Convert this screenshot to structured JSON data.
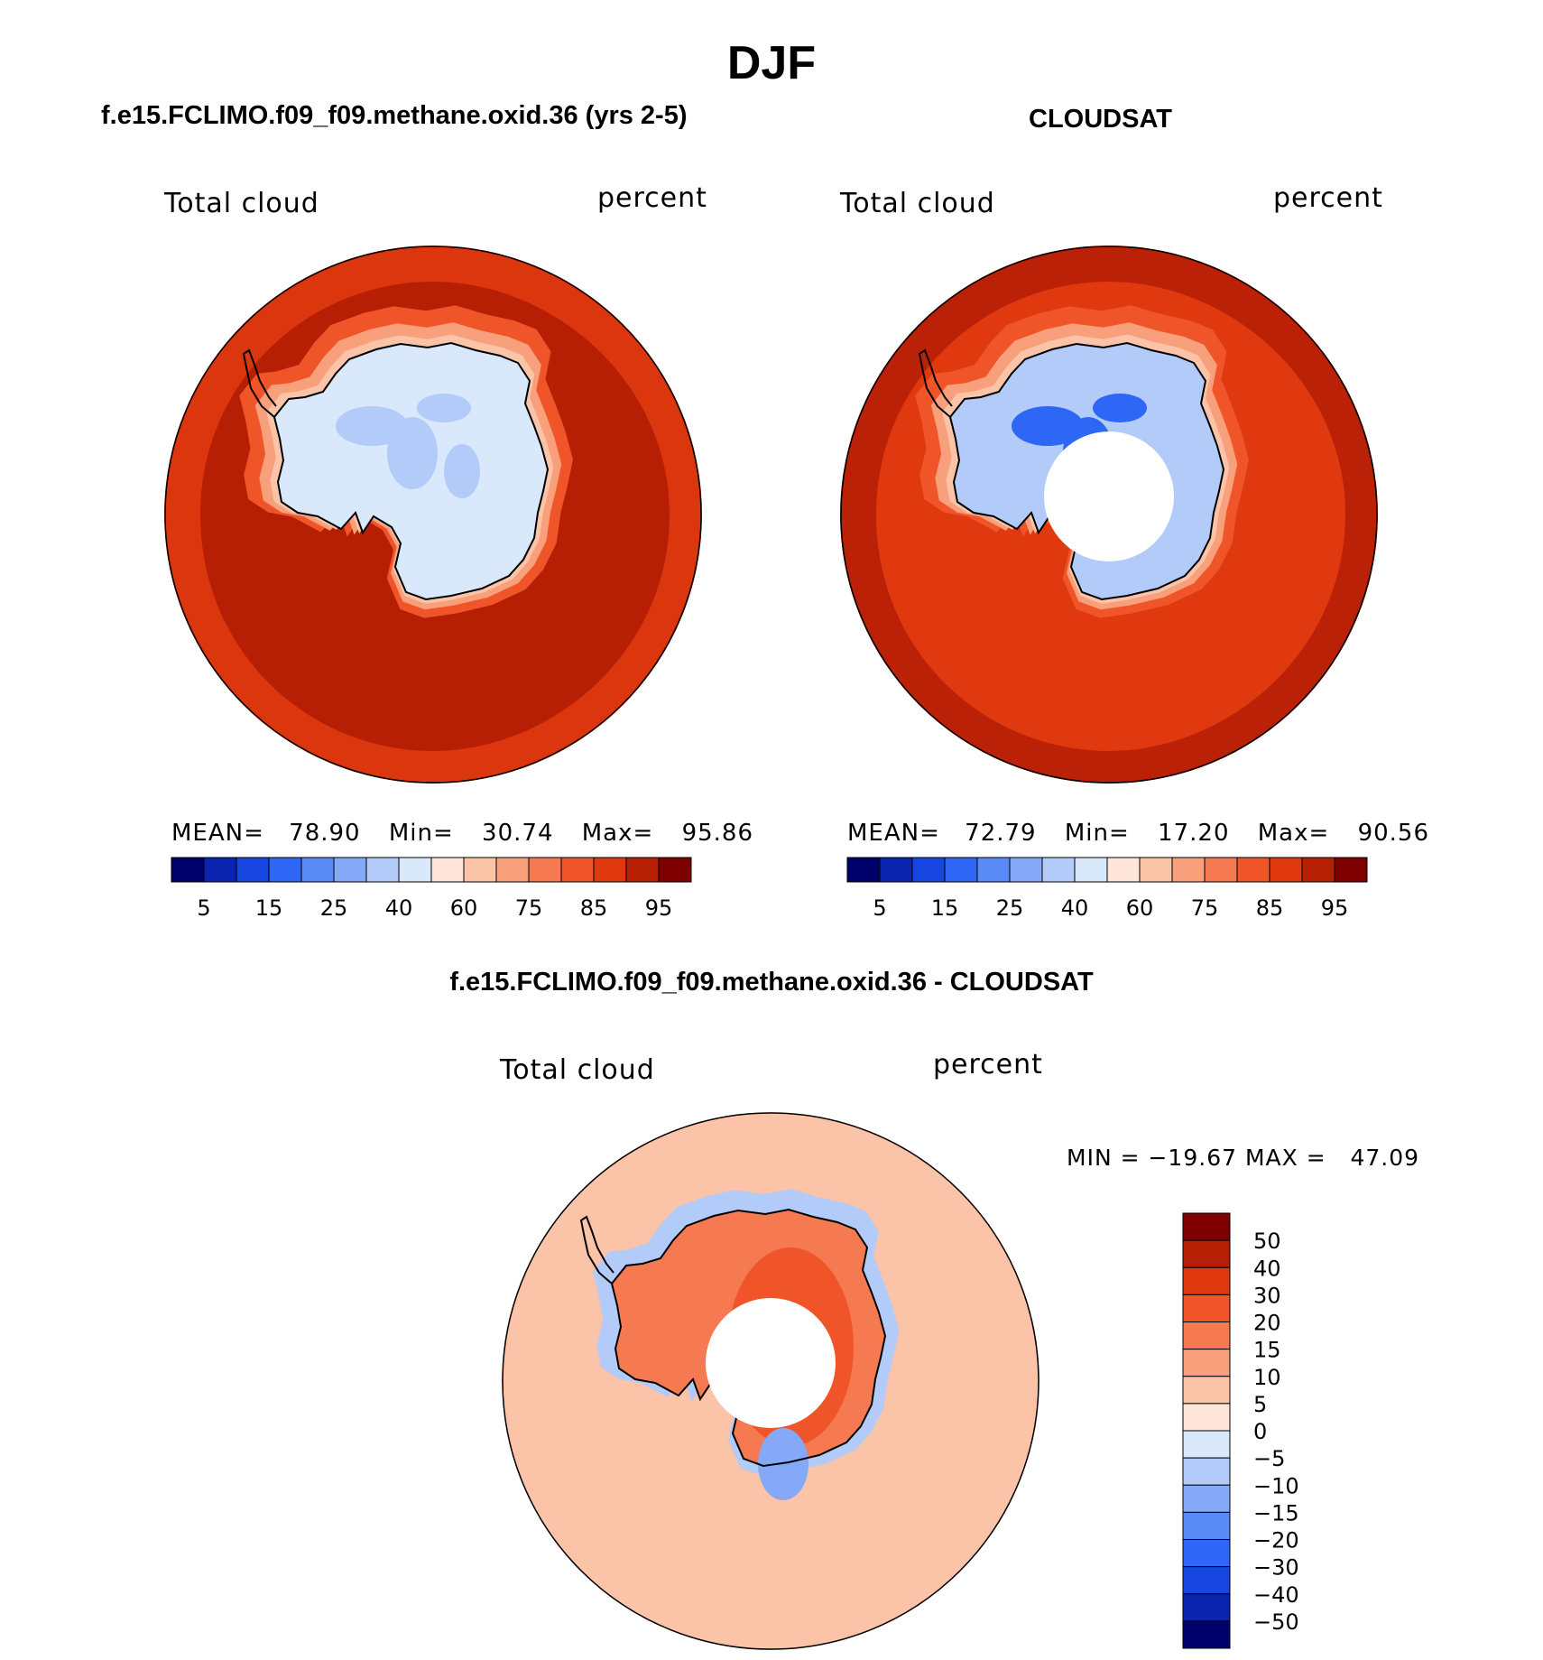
{
  "page": {
    "title": "DJF"
  },
  "panels": {
    "model": {
      "title": "f.e15.FCLIMO.f09_f09.methane.oxid.36 (yrs 2-5)",
      "left_label": "Total cloud",
      "right_label": "percent",
      "stats": {
        "mean_label": "MEAN=",
        "mean": "78.90",
        "min_label": "Min=",
        "min": "30.74",
        "max_label": "Max=",
        "max": "95.86"
      }
    },
    "obs": {
      "title": "CLOUDSAT",
      "left_label": "Total cloud",
      "right_label": "percent",
      "stats": {
        "mean_label": "MEAN=",
        "mean": "72.79",
        "min_label": "Min=",
        "min": "17.20",
        "max_label": "Max=",
        "max": "90.56"
      }
    },
    "diff": {
      "title": "f.e15.FCLIMO.f09_f09.methane.oxid.36 - CLOUDSAT",
      "left_label": "Total cloud",
      "right_label": "percent",
      "minmax": "MIN = −19.67 MAX =   47.09"
    }
  },
  "colors": {
    "seq16": [
      "#00006b",
      "#0a24b0",
      "#1645e0",
      "#2e66f5",
      "#5a8af5",
      "#86a9f7",
      "#b3cbf9",
      "#d9e8fb",
      "#fde6d9",
      "#fbc4a8",
      "#f8a07c",
      "#f57a52",
      "#f0552a",
      "#e0380f",
      "#b71f05",
      "#7f0000"
    ],
    "diff16": [
      "#00006b",
      "#0a24b0",
      "#1645e0",
      "#2e66f5",
      "#5a8af5",
      "#86a9f7",
      "#b3cbf9",
      "#d9e8fb",
      "#fde6d9",
      "#fbc4a8",
      "#f8a07c",
      "#f57a52",
      "#f0552a",
      "#e0380f",
      "#b71f05",
      "#7f0000"
    ],
    "coast": "#000000"
  },
  "chart_data": [
    {
      "type": "heatmap",
      "projection": "south-polar-stereographic",
      "title": "f.e15.FCLIMO.f09_f09.methane.oxid.36 (yrs 2-5)",
      "variable": "Total cloud",
      "units": "percent",
      "mean": 78.9,
      "min": 30.74,
      "max": 95.86,
      "colorbar_ticks": [
        "5",
        "15",
        "25",
        "40",
        "60",
        "75",
        "85",
        "95"
      ],
      "levels": [
        5,
        10,
        15,
        20,
        25,
        30,
        40,
        50,
        60,
        70,
        75,
        80,
        85,
        90,
        95
      ],
      "field": {
        "ocean": 93,
        "ocean_band": 88,
        "coast_ring": [
          80,
          72,
          65
        ],
        "interior": 45,
        "low_patches": 35,
        "pole_hole": false
      }
    },
    {
      "type": "heatmap",
      "projection": "south-polar-stereographic",
      "title": "CLOUDSAT",
      "variable": "Total cloud",
      "units": "percent",
      "mean": 72.79,
      "min": 17.2,
      "max": 90.56,
      "colorbar_ticks": [
        "5",
        "15",
        "25",
        "40",
        "60",
        "75",
        "85",
        "95"
      ],
      "levels": [
        5,
        10,
        15,
        20,
        25,
        30,
        40,
        50,
        60,
        70,
        75,
        80,
        85,
        90,
        95
      ],
      "field": {
        "ocean": 87,
        "ocean_band": 91,
        "coast_ring": [
          80,
          72,
          65
        ],
        "interior": 38,
        "low_patches": 18,
        "pole_hole": true
      }
    },
    {
      "type": "heatmap",
      "projection": "south-polar-stereographic",
      "title": "f.e15.FCLIMO.f09_f09.methane.oxid.36 - CLOUDSAT",
      "variable": "Total cloud",
      "units": "percent",
      "min": -19.67,
      "max": 47.09,
      "colorbar_ticks": [
        "50",
        "40",
        "30",
        "20",
        "15",
        "10",
        "5",
        "0",
        "−5",
        "−10",
        "−15",
        "−20",
        "−30",
        "−40",
        "−50"
      ],
      "field": {
        "ocean": 7,
        "interior_high": 25,
        "interior_low": -12,
        "pole_hole": true
      }
    }
  ]
}
